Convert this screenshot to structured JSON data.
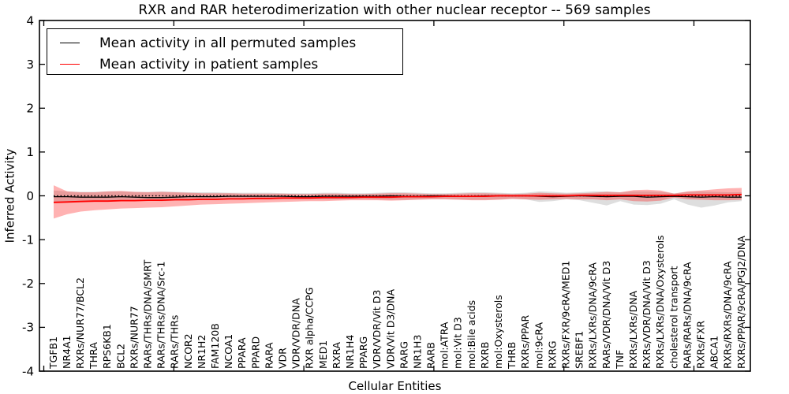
{
  "chart_data": {
    "type": "line",
    "title": "RXR and RAR heterodimerization with other nuclear receptor -- 569 samples",
    "xlabel": "Cellular Entities",
    "ylabel": "Inferred Activity",
    "ylim": [
      -4,
      4
    ],
    "yticks": [
      -4,
      -3,
      -2,
      -1,
      0,
      1,
      2,
      3,
      4
    ],
    "grid": false,
    "legend_position": "upper left",
    "zero_line_style": "dotted",
    "frame_color": "#000000",
    "categories": [
      "TGFB1",
      "NR4A1",
      "RXRs/NUR77/BCL2",
      "THRA",
      "RPS6KB1",
      "BCL2",
      "RXRs/NUR77",
      "RARs/THRs/DNA/SMRT",
      "RARs/THRs/DNA/Src-1",
      "RARs/THRs",
      "NCOR2",
      "NR1H2",
      "FAM120B",
      "NCOA1",
      "PPARA",
      "PPARD",
      "RARA",
      "VDR",
      "VDR/VDR/DNA",
      "RXR alpha/CCPG",
      "MED1",
      "RXRA",
      "NR1H4",
      "PPARG",
      "VDR/VDR/Vit D3",
      "VDR/Vit D3/DNA",
      "RARG",
      "NR1H3",
      "RARB",
      "mol:ATRA",
      "mol:Vit D3",
      "mol:Bile acids",
      "RXRB",
      "mol:Oxysterols",
      "THRB",
      "RXRs/PPAR",
      "mol:9cRA",
      "RXRG",
      "RXRs/FXR/9cRA/MED1",
      "SREBF1",
      "RXRs/LXRs/DNA/9cRA",
      "RARs/VDR/DNA/Vit D3",
      "TNF",
      "RXRs/LXRs/DNA",
      "RXRs/VDR/DNA/Vit D3",
      "RXRs/LXRs/DNA/Oxysterols",
      "cholesterol transport",
      "RARs/RARs/DNA/9cRA",
      "RXRs/FXR",
      "ABCA1",
      "RXRs/RXRs/DNA/9cRA",
      "RXRs/PPAR/9cRA/PGJ2/DNA"
    ],
    "series": [
      {
        "name": "Mean activity in all permuted samples",
        "color": "#000000",
        "width": 1.3,
        "values": [
          -0.02,
          -0.02,
          -0.03,
          -0.03,
          -0.03,
          -0.02,
          -0.03,
          -0.04,
          -0.04,
          -0.03,
          -0.02,
          -0.02,
          -0.02,
          -0.01,
          -0.01,
          -0.01,
          -0.01,
          -0.01,
          -0.02,
          -0.02,
          -0.01,
          -0.01,
          -0.01,
          -0.01,
          -0.01,
          0,
          -0.01,
          -0.01,
          0,
          0,
          -0.01,
          -0.01,
          0,
          0,
          0,
          0,
          -0.01,
          -0.02,
          -0.01,
          0,
          -0.01,
          -0.02,
          -0.01,
          -0.01,
          -0.03,
          -0.02,
          -0.01,
          -0.02,
          -0.03,
          -0.02,
          -0.03,
          -0.03
        ]
      },
      {
        "name": "Mean activity in patient samples",
        "color": "#ff0000",
        "width": 1.8,
        "values": [
          -0.15,
          -0.14,
          -0.13,
          -0.12,
          -0.12,
          -0.11,
          -0.11,
          -0.1,
          -0.1,
          -0.09,
          -0.09,
          -0.08,
          -0.08,
          -0.07,
          -0.07,
          -0.06,
          -0.06,
          -0.05,
          -0.05,
          -0.05,
          -0.04,
          -0.04,
          -0.04,
          -0.03,
          -0.03,
          -0.03,
          -0.02,
          -0.02,
          -0.02,
          -0.01,
          -0.01,
          -0.01,
          -0.01,
          0,
          0,
          0,
          0,
          0,
          0,
          0.01,
          0.01,
          0.01,
          0.01,
          0.01,
          0.01,
          0.01,
          0.01,
          0.02,
          0.02,
          0.02,
          0.02,
          0.03
        ]
      }
    ],
    "bands": [
      {
        "name": "permuted-samples-range",
        "color": "#000000",
        "opacity": 0.13,
        "upper": [
          0.12,
          0.1,
          0.09,
          0.09,
          0.1,
          0.1,
          0.09,
          0.09,
          0.1,
          0.09,
          0.08,
          0.08,
          0.08,
          0.07,
          0.07,
          0.07,
          0.07,
          0.06,
          0.06,
          0.06,
          0.07,
          0.07,
          0.06,
          0.06,
          0.07,
          0.08,
          0.08,
          0.07,
          0.06,
          0.06,
          0.07,
          0.08,
          0.08,
          0.07,
          0.06,
          0.07,
          0.1,
          0.09,
          0.07,
          0.08,
          0.1,
          0.1,
          0.08,
          0.1,
          0.1,
          0.09,
          0.06,
          0.09,
          0.1,
          0.09,
          0.08,
          0.08
        ],
        "lower": [
          -0.15,
          -0.13,
          -0.12,
          -0.11,
          -0.12,
          -0.12,
          -0.11,
          -0.11,
          -0.12,
          -0.11,
          -0.1,
          -0.09,
          -0.09,
          -0.08,
          -0.08,
          -0.08,
          -0.08,
          -0.07,
          -0.07,
          -0.07,
          -0.08,
          -0.08,
          -0.07,
          -0.07,
          -0.08,
          -0.09,
          -0.09,
          -0.08,
          -0.07,
          -0.07,
          -0.08,
          -0.09,
          -0.09,
          -0.08,
          -0.07,
          -0.08,
          -0.14,
          -0.12,
          -0.08,
          -0.1,
          -0.16,
          -0.22,
          -0.12,
          -0.2,
          -0.21,
          -0.18,
          -0.08,
          -0.2,
          -0.27,
          -0.22,
          -0.15,
          -0.12
        ]
      },
      {
        "name": "patient-samples-range",
        "color": "#ff0000",
        "opacity": 0.3,
        "upper": [
          0.24,
          0.1,
          0.08,
          0.08,
          0.1,
          0.11,
          0.09,
          0.08,
          0.09,
          0.08,
          0.07,
          0.06,
          0.06,
          0.06,
          0.05,
          0.05,
          0.05,
          0.05,
          0.04,
          0.04,
          0.05,
          0.05,
          0.04,
          0.04,
          0.05,
          0.06,
          0.06,
          0.05,
          0.04,
          0.04,
          0.05,
          0.06,
          0.06,
          0.05,
          0.04,
          0.05,
          0.07,
          0.06,
          0.05,
          0.06,
          0.07,
          0.09,
          0.08,
          0.13,
          0.14,
          0.12,
          0.05,
          0.1,
          0.12,
          0.15,
          0.17,
          0.18
        ],
        "lower": [
          -0.52,
          -0.42,
          -0.36,
          -0.33,
          -0.31,
          -0.29,
          -0.28,
          -0.27,
          -0.26,
          -0.24,
          -0.22,
          -0.2,
          -0.19,
          -0.18,
          -0.17,
          -0.16,
          -0.15,
          -0.14,
          -0.13,
          -0.12,
          -0.12,
          -0.11,
          -0.1,
          -0.1,
          -0.1,
          -0.11,
          -0.1,
          -0.09,
          -0.08,
          -0.08,
          -0.09,
          -0.1,
          -0.1,
          -0.09,
          -0.07,
          -0.08,
          -0.09,
          -0.08,
          -0.07,
          -0.08,
          -0.08,
          -0.1,
          -0.08,
          -0.12,
          -0.13,
          -0.11,
          -0.04,
          -0.08,
          -0.09,
          -0.1,
          -0.1,
          -0.09
        ]
      }
    ]
  }
}
